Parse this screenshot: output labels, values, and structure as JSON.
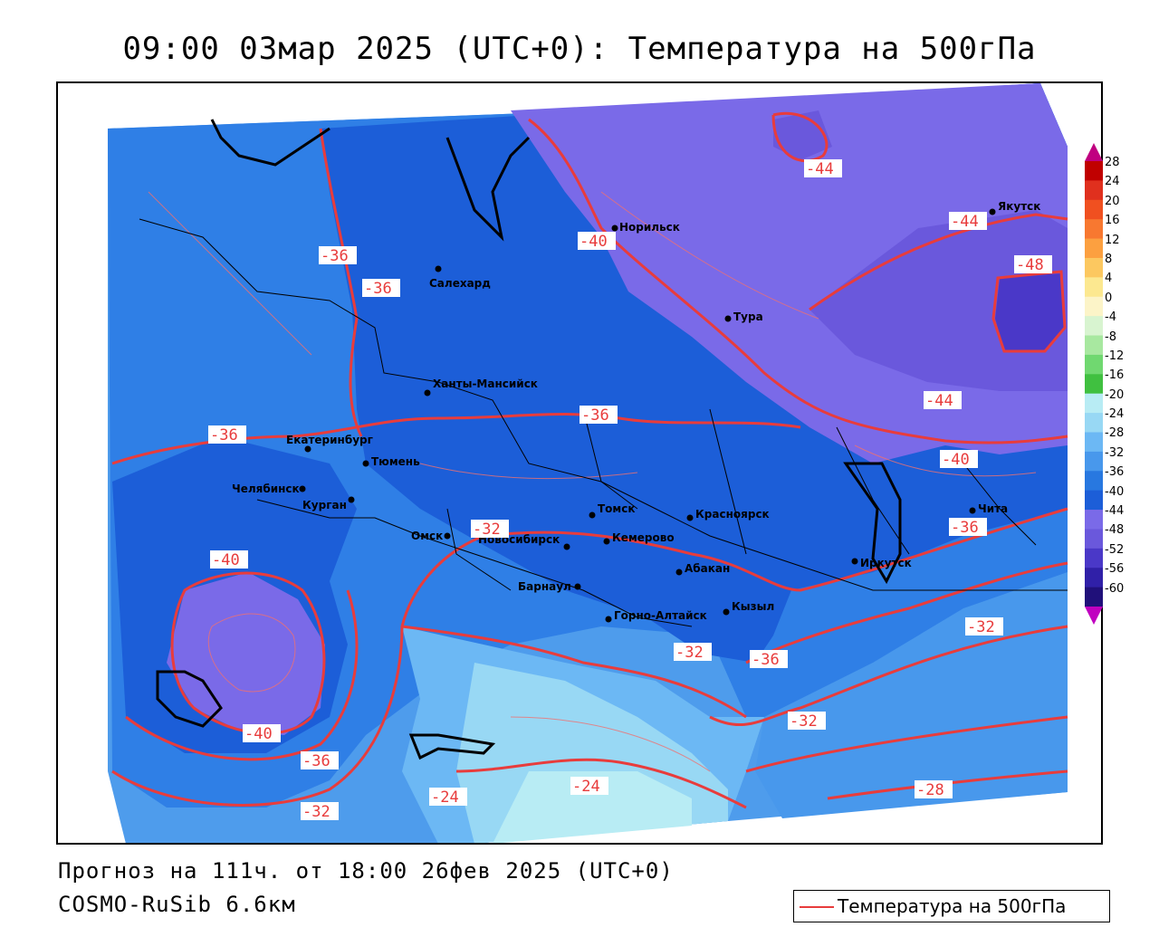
{
  "title": "09:00 03мар 2025 (UTC+0): Температура на 500гПа",
  "forecast_line": "Прогноз на 111ч. от 18:00 26фев 2025 (UTC+0)",
  "model_line": "COSMO-RuSib 6.6км",
  "legend": {
    "label": "Температура на 500гПа",
    "line_color": "#e83c3c"
  },
  "colorbar": {
    "labels": [
      "28",
      "24",
      "20",
      "16",
      "12",
      "8",
      "4",
      "0",
      "-4",
      "-8",
      "-12",
      "-16",
      "-20",
      "-24",
      "-28",
      "-32",
      "-36",
      "-40",
      "-44",
      "-48",
      "-52",
      "-56",
      "-60"
    ],
    "colors": [
      "#c00000",
      "#e0301e",
      "#f05020",
      "#f87830",
      "#fca040",
      "#fcc860",
      "#fce890",
      "#fcf4c8",
      "#d8f4d0",
      "#a8e8a0",
      "#70d870",
      "#40c040",
      "#b8ecf4",
      "#98d8f4",
      "#6cb8f4",
      "#4898ec",
      "#2878e0",
      "#1c5ed8",
      "#7a6ae8",
      "#6a58dc",
      "#4a38c8",
      "#3020a8",
      "#20107a"
    ]
  },
  "cities": [
    {
      "name": "Салехард"
    },
    {
      "name": "Норильск"
    },
    {
      "name": "Якутск"
    },
    {
      "name": "Тура"
    },
    {
      "name": "Ханты-Мансийск"
    },
    {
      "name": "Екатеринбург"
    },
    {
      "name": "Тюмень"
    },
    {
      "name": "Челябинск"
    },
    {
      "name": "Курган"
    },
    {
      "name": "Омск"
    },
    {
      "name": "Новосибирск"
    },
    {
      "name": "Томск"
    },
    {
      "name": "Кемерово"
    },
    {
      "name": "Красноярск"
    },
    {
      "name": "Барнаул"
    },
    {
      "name": "Абакан"
    },
    {
      "name": "Горно-Алтайск"
    },
    {
      "name": "Кызыл"
    },
    {
      "name": "Иркутск"
    },
    {
      "name": "Чита"
    }
  ],
  "isotherm_labels": [
    "-44",
    "-44",
    "-48",
    "-40",
    "-36",
    "-36",
    "-44",
    "-36",
    "-40",
    "-36",
    "-36",
    "-32",
    "-40",
    "-40",
    "-36",
    "-32",
    "-32",
    "-36",
    "-32",
    "-28",
    "-24",
    "-24",
    "-32"
  ]
}
